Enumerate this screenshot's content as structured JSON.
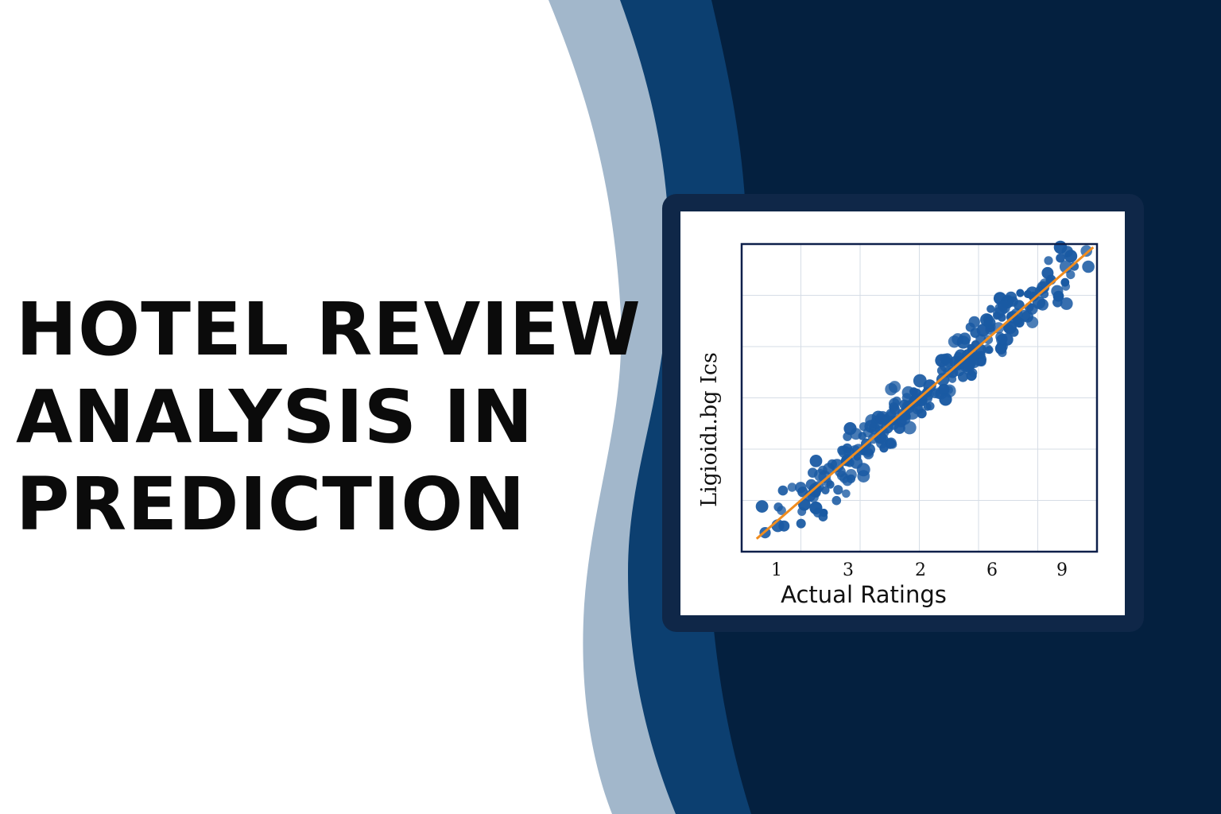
{
  "title_lines": [
    "HOTEL REVIEW",
    "ANALYSIS IN",
    "PREDICTION"
  ],
  "colors": {
    "background_left": "#ffffff",
    "wave_light": "#a2b7cb",
    "wave_mid": "#0c3f70",
    "background_right": "#04203f",
    "card_frame": "#0f2748",
    "points": "#1a5aa3",
    "fit_line": "#f08c1e",
    "plot_border": "#0d1f4a",
    "grid": "#d6dde6"
  },
  "chart_data": {
    "type": "scatter",
    "xlabel": "Actual Ratings",
    "ylabel": "Ligioidı.bg Ics",
    "x_tick_labels": [
      "1",
      "3",
      "2",
      "6",
      "9"
    ],
    "xlim": [
      0.5,
      10
    ],
    "ylim": [
      0.5,
      10
    ],
    "grid": true,
    "legend": "none",
    "points_count": 260,
    "fit_line": {
      "x": [
        0.9,
        9.9
      ],
      "y": [
        0.9,
        9.9
      ]
    }
  }
}
